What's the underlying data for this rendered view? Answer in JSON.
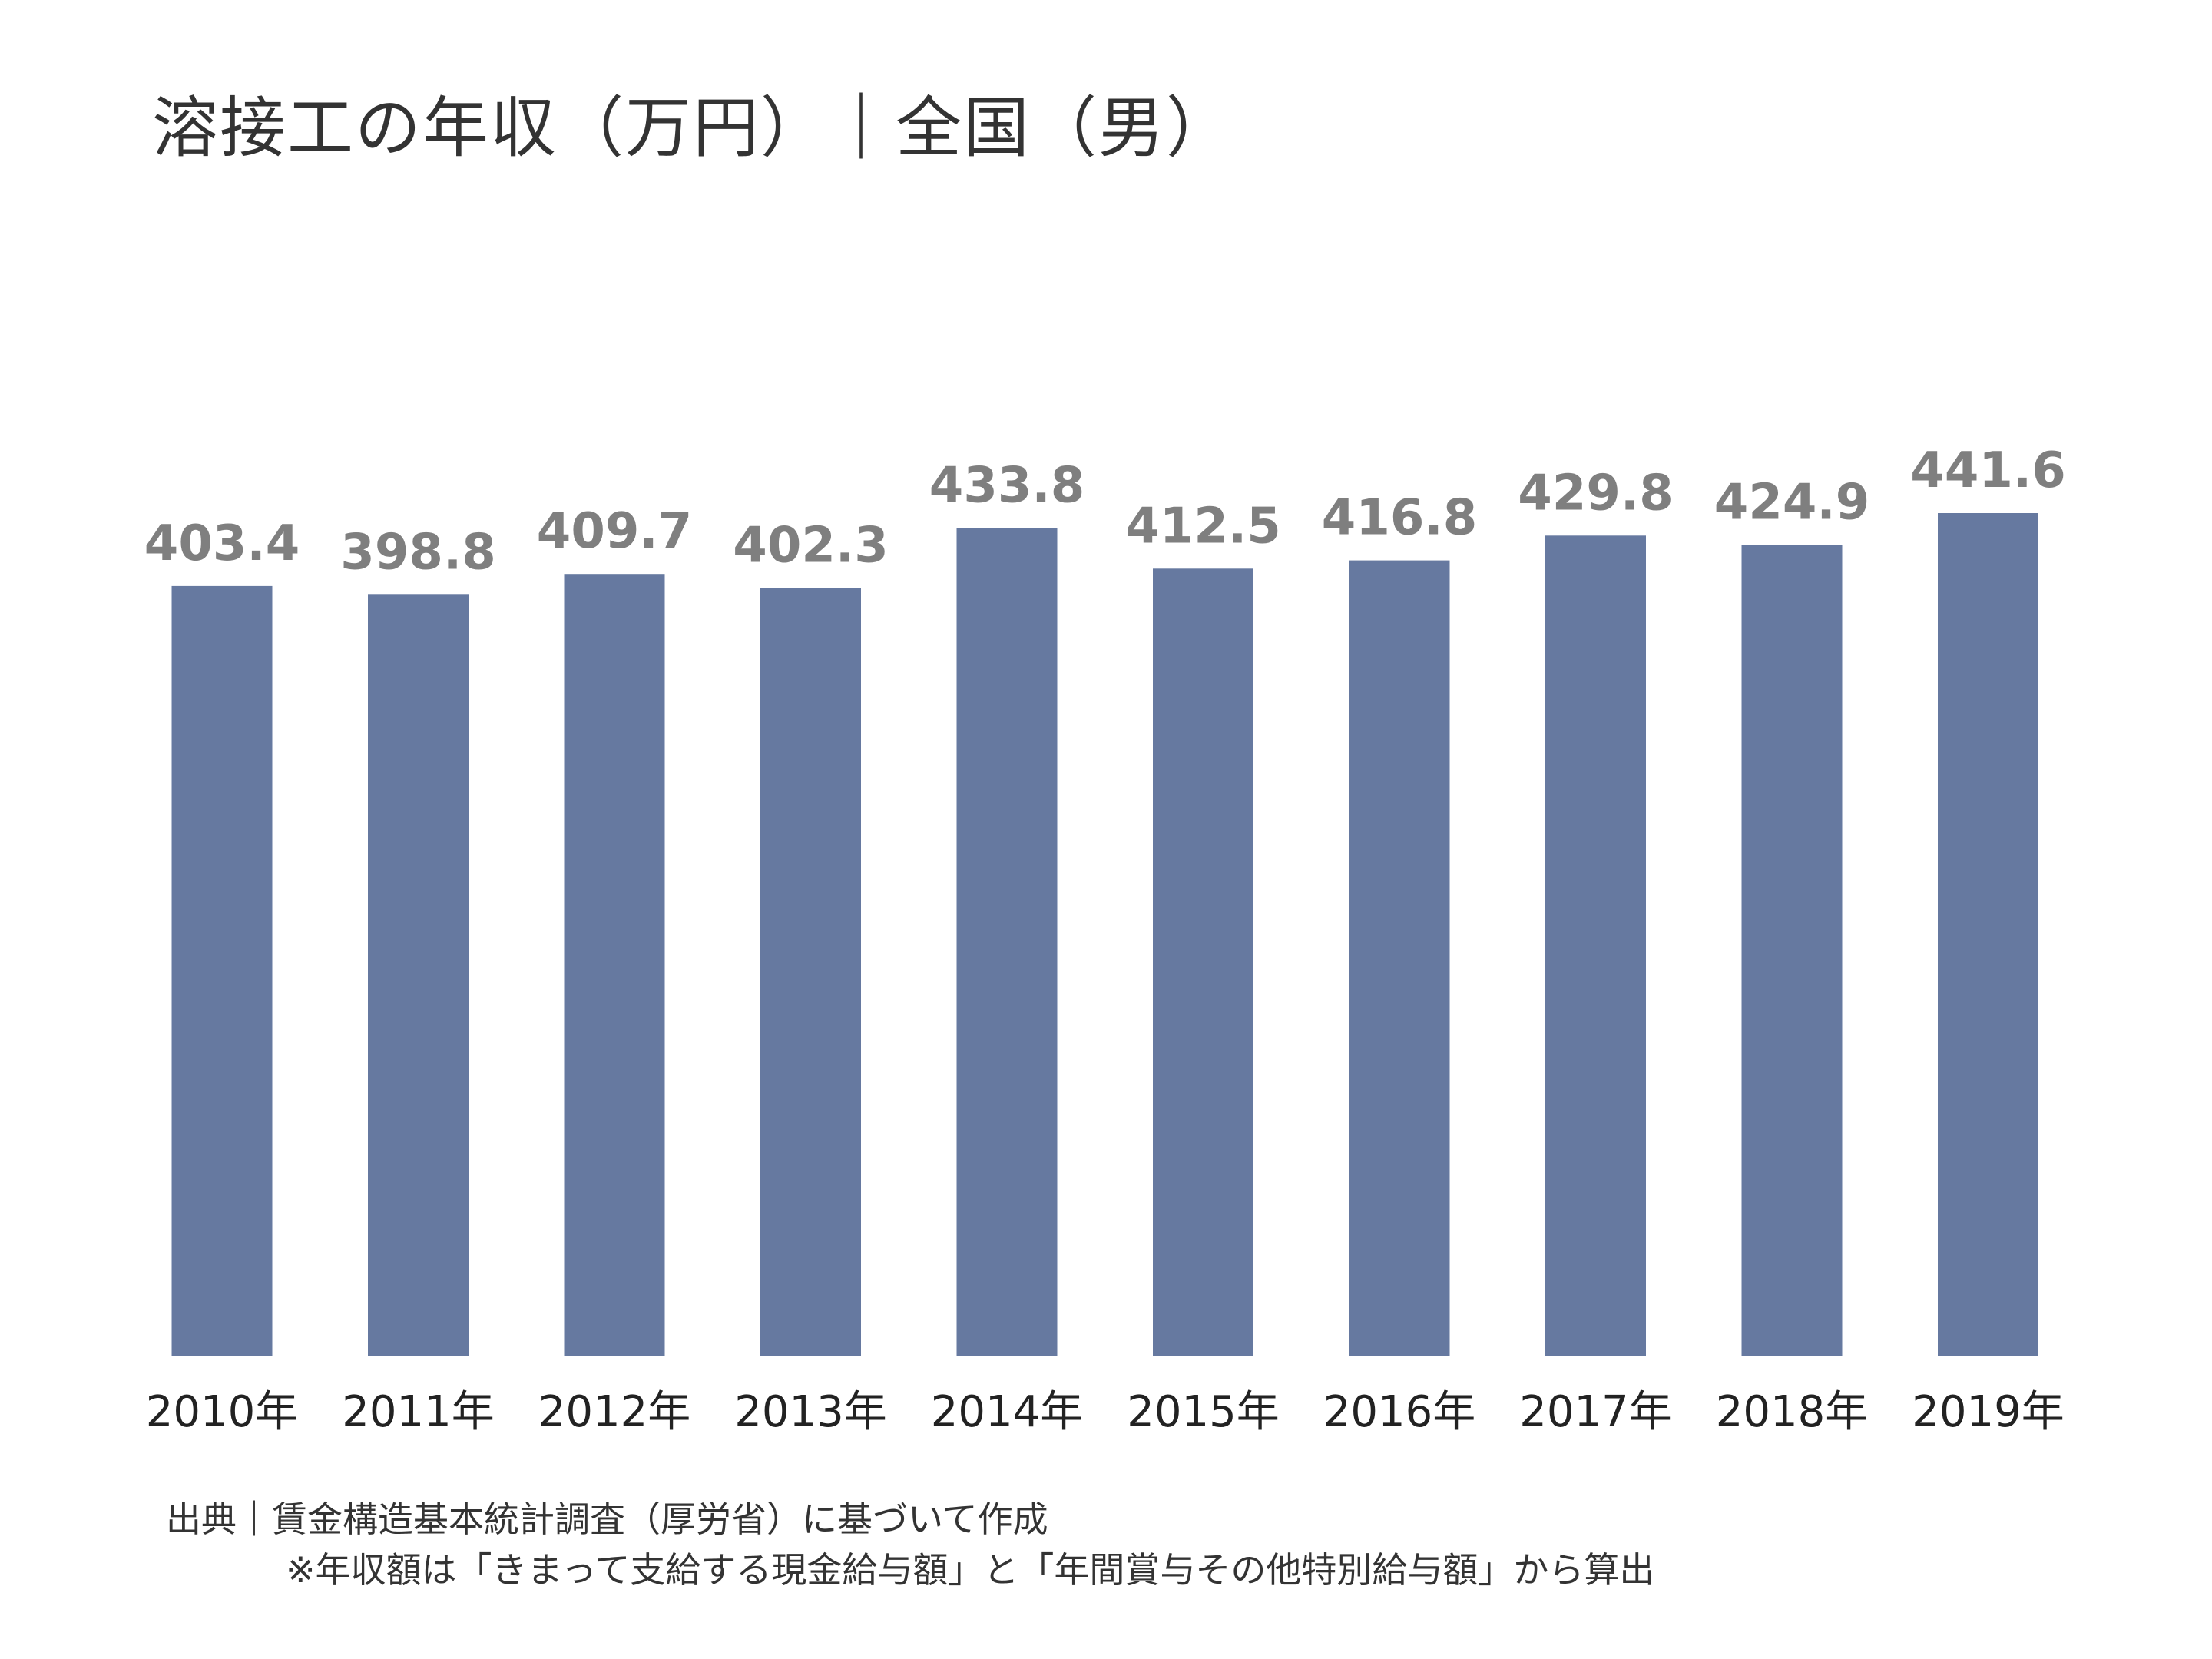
{
  "title": "溶接工の年収（万円）｜全国（男）",
  "colors": {
    "bar": "#6679a0",
    "value_label": "#7f7f7f",
    "axis_label": "#222222"
  },
  "chart_data": {
    "type": "bar",
    "categories": [
      "2010年",
      "2011年",
      "2012年",
      "2013年",
      "2014年",
      "2015年",
      "2016年",
      "2017年",
      "2018年",
      "2019年"
    ],
    "values": [
      403.4,
      398.8,
      409.7,
      402.3,
      433.8,
      412.5,
      416.8,
      429.8,
      424.9,
      441.6
    ],
    "value_labels": [
      "403.4",
      "398.8",
      "409.7",
      "402.3",
      "433.8",
      "412.5",
      "416.8",
      "429.8",
      "424.9",
      "441.6"
    ],
    "title": "溶接工の年収（万円）｜全国（男）",
    "xlabel": "",
    "ylabel": "",
    "ylim": [
      0,
      441.6
    ],
    "grid": false,
    "legend": "none"
  },
  "footer": {
    "source": "出典｜賃金構造基本統計調査（厚労省）に基づいて作成",
    "note": "※年収額は「きまって支給する現金給与額」と「年間賞与その他特別給与額」から算出"
  }
}
